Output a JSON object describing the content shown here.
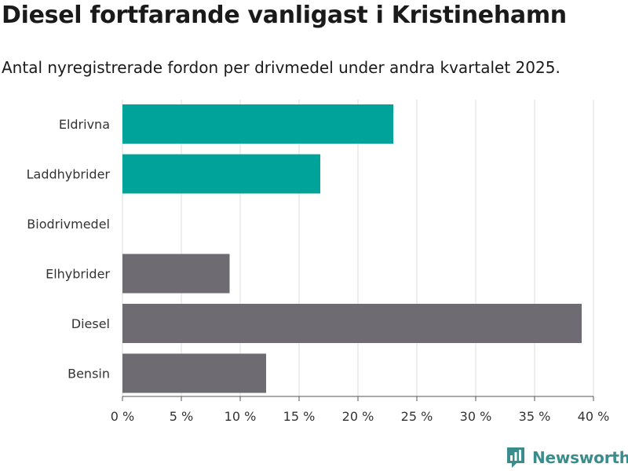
{
  "title": "Diesel fortfarande vanligast i Kristinehamn",
  "subtitle": "Antal nyregistrerade fordon per drivmedel under andra kvartalet 2025.",
  "brand": {
    "name": "Newsworthy",
    "icon": "newsworthy-logo-icon",
    "color": "#3b8c8c"
  },
  "chart_data": {
    "type": "bar",
    "orientation": "horizontal",
    "categories": [
      "Eldrivna",
      "Laddhybrider",
      "Biodrivmedel",
      "Elhybrider",
      "Diesel",
      "Bensin"
    ],
    "values": [
      23.0,
      16.8,
      0,
      9.1,
      39.0,
      12.2
    ],
    "colors": [
      "#00a39a",
      "#00a39a",
      "#00a39a",
      "#6e6c72",
      "#6e6c72",
      "#6e6c72"
    ],
    "xlim": [
      0,
      40
    ],
    "xticks": [
      0,
      5,
      10,
      15,
      20,
      25,
      30,
      35,
      40
    ],
    "tick_format": "{v} %",
    "grid": true
  }
}
